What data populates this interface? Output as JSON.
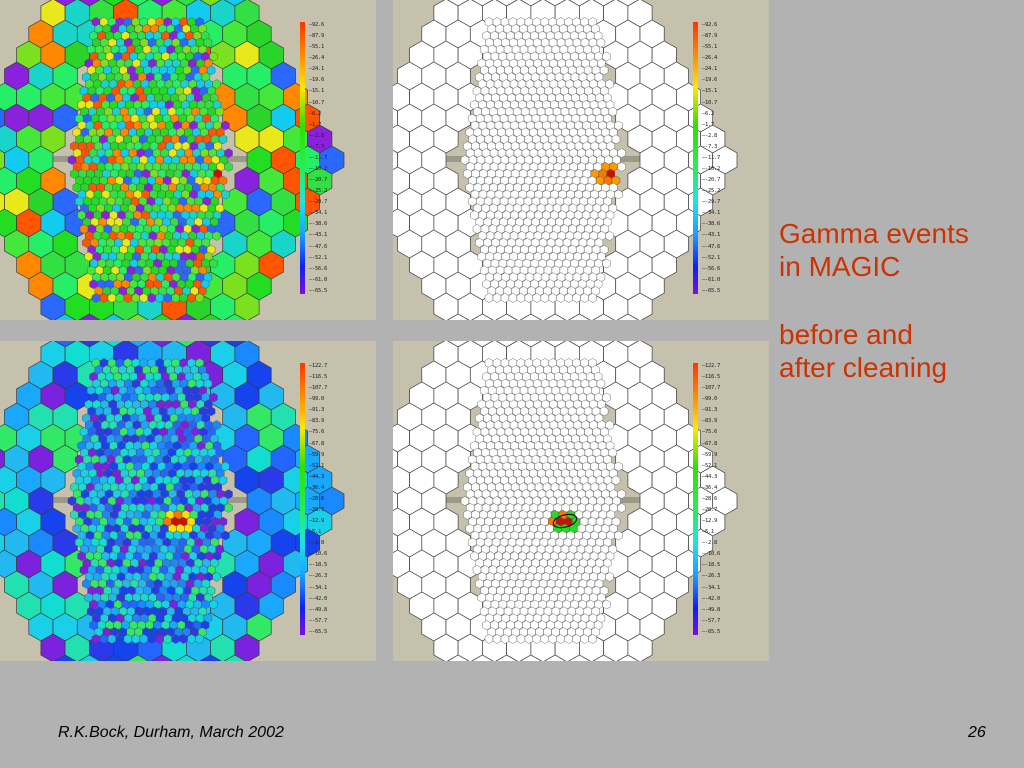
{
  "slide": {
    "title_line1": "Gamma events",
    "title_line2": "in MAGIC",
    "subtitle_line1": "before and",
    "subtitle_line2": "after cleaning",
    "footer_left": "R.K.Bock, Durham, March 2002",
    "page_number": "26"
  },
  "panels": [
    {
      "id": "top-left",
      "cleaned": false,
      "scale_labels": [
        "92.6",
        "87.9",
        "55.1",
        "26.4",
        "24.1",
        "19.6",
        "15.1",
        "10.7",
        "6.2",
        "1.7",
        "-2.8",
        "-7.3",
        "-11.7",
        "-16.2",
        "-20.7",
        "-25.2",
        "-29.7",
        "-34.1",
        "-38.6",
        "-43.1",
        "-47.6",
        "-52.1",
        "-56.6",
        "-61.0",
        "-65.5"
      ]
    },
    {
      "id": "top-right",
      "cleaned": true,
      "scale_labels": [
        "92.6",
        "87.9",
        "55.1",
        "26.4",
        "24.1",
        "19.6",
        "15.1",
        "10.7",
        "6.2",
        "1.7",
        "-2.8",
        "-7.3",
        "-11.7",
        "-16.2",
        "-20.7",
        "-25.2",
        "-29.7",
        "-34.1",
        "-38.6",
        "-43.1",
        "-47.6",
        "-52.1",
        "-56.6",
        "-61.0",
        "-65.5"
      ]
    },
    {
      "id": "bottom-left",
      "cleaned": false,
      "scale_labels": [
        "122.7",
        "116.5",
        "107.7",
        "99.0",
        "91.3",
        "83.9",
        "75.6",
        "67.8",
        "59.9",
        "52.1",
        "44.3",
        "36.4",
        "28.6",
        "20.7",
        "12.9",
        "5.1",
        "-2.8",
        "-10.6",
        "-18.5",
        "-26.3",
        "-34.1",
        "-42.0",
        "-49.8",
        "-57.7",
        "-65.5"
      ]
    },
    {
      "id": "bottom-right",
      "cleaned": true,
      "scale_labels": [
        "122.7",
        "116.5",
        "107.7",
        "99.0",
        "91.3",
        "83.9",
        "75.6",
        "67.8",
        "59.9",
        "52.1",
        "44.3",
        "36.4",
        "28.6",
        "20.7",
        "12.9",
        "5.1",
        "-2.8",
        "-10.6",
        "-18.5",
        "-26.3",
        "-34.1",
        "-42.0",
        "-49.8",
        "-57.7",
        "-65.5"
      ]
    }
  ],
  "colors": {
    "slide_background": "#b2b2b2",
    "panel_background": "#c5c1ad",
    "accent_text": "#cc3300"
  }
}
